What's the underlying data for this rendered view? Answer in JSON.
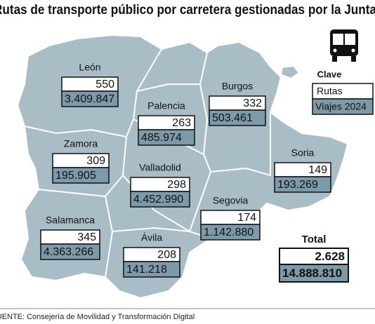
{
  "header": {
    "title": "Rutas de transporte público por carretera gestionadas por la Junta"
  },
  "legend": {
    "title": "Clave",
    "rutas": "Rutas",
    "viajes": "Viajes 2024"
  },
  "provinces": [
    {
      "name": "León",
      "rutas": "550",
      "viajes": "3.409.847"
    },
    {
      "name": "Palencia",
      "rutas": "263",
      "viajes": "485.974"
    },
    {
      "name": "Burgos",
      "rutas": "332",
      "viajes": "503.461"
    },
    {
      "name": "Zamora",
      "rutas": "309",
      "viajes": "195.905"
    },
    {
      "name": "Valladolid",
      "rutas": "298",
      "viajes": "4.452.990"
    },
    {
      "name": "Soria",
      "rutas": "149",
      "viajes": "193.269"
    },
    {
      "name": "Segovia",
      "rutas": "174",
      "viajes": "1.142.880"
    },
    {
      "name": "Salamanca",
      "rutas": "345",
      "viajes": "4.363.266"
    },
    {
      "name": "Ávila",
      "rutas": "208",
      "viajes": "141.218"
    }
  ],
  "total": {
    "label": "Total",
    "rutas": "2.628",
    "viajes": "14.888.810"
  },
  "footer": {
    "source": "FUENTE: Consejería de Movilidad y Transformación Digital"
  }
}
